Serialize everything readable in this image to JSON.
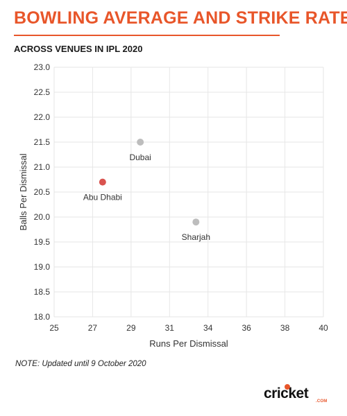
{
  "header": {
    "title": "BOWLING AVERAGE AND STRIKE RATE",
    "subtitle": "ACROSS VENUES IN IPL 2020"
  },
  "footer": {
    "note": "NOTE: Updated until 9 October 2020",
    "logo_text": "cricket",
    "logo_sub": ".COM"
  },
  "colors": {
    "accent": "#e8562a",
    "grey_point": "#bdbdbd",
    "highlight_point": "#d9534f",
    "grid": "#e6e6e6",
    "axis_text": "#333333"
  },
  "chart_data": {
    "type": "scatter",
    "xlabel": "Runs Per Dismissal",
    "ylabel": "Balls Per Dismissal",
    "xlim": [
      25,
      40
    ],
    "ylim": [
      18.0,
      23.0
    ],
    "x_ticks": [
      "25",
      "27",
      "29",
      "31",
      "34",
      "36",
      "38",
      "40"
    ],
    "y_ticks": [
      "18.0",
      "18.5",
      "19.0",
      "19.5",
      "20.0",
      "20.5",
      "21.0",
      "21.5",
      "22.0",
      "22.5",
      "23.0"
    ],
    "grid": true,
    "points": [
      {
        "label": "Abu Dhabi",
        "x": 27.7,
        "y": 20.7,
        "highlight": true
      },
      {
        "label": "Dubai",
        "x": 29.8,
        "y": 21.5,
        "highlight": false
      },
      {
        "label": "Sharjah",
        "x": 32.9,
        "y": 19.9,
        "highlight": false
      }
    ]
  }
}
